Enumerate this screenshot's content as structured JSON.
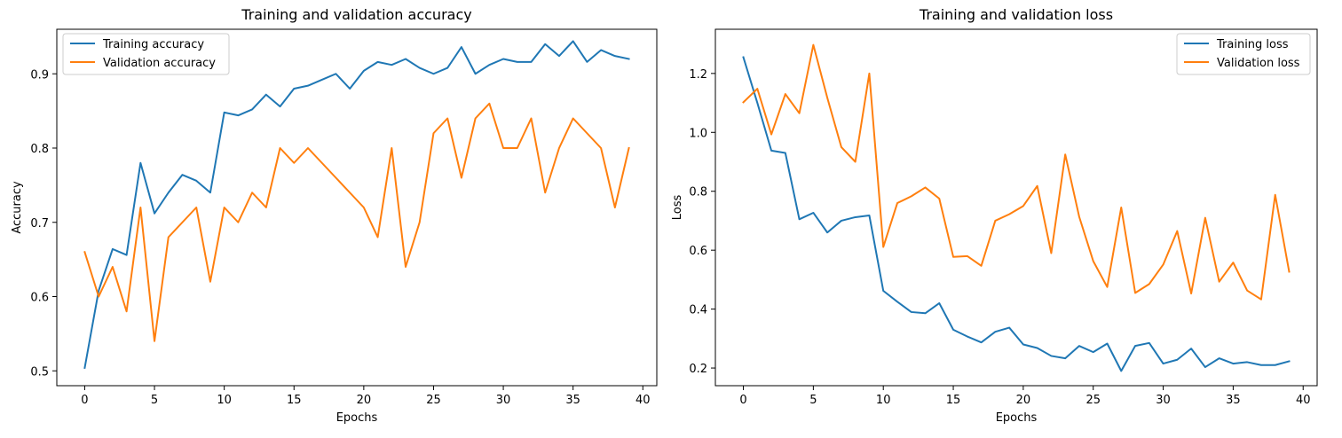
{
  "chart_data": [
    {
      "type": "line",
      "title": "Training and validation accuracy",
      "xlabel": "Epochs",
      "ylabel": "Accuracy",
      "xlim": [
        -2,
        41
      ],
      "ylim": [
        0.48,
        0.96
      ],
      "xticks": [
        0,
        5,
        10,
        15,
        20,
        25,
        30,
        35,
        40
      ],
      "yticks": [
        0.5,
        0.6,
        0.7,
        0.8,
        0.9
      ],
      "ytick_labels": [
        "0.5",
        "0.6",
        "0.7",
        "0.8",
        "0.9"
      ],
      "legend_position": "upper left",
      "grid": false,
      "x": [
        0,
        1,
        2,
        3,
        4,
        5,
        6,
        7,
        8,
        9,
        10,
        11,
        12,
        13,
        14,
        15,
        16,
        17,
        18,
        19,
        20,
        21,
        22,
        23,
        24,
        25,
        26,
        27,
        28,
        29,
        30,
        31,
        32,
        33,
        34,
        35,
        36,
        37,
        38,
        39
      ],
      "series": [
        {
          "name": "Training accuracy",
          "color": "#1f77b4",
          "values": [
            0.504,
            0.608,
            0.664,
            0.656,
            0.78,
            0.712,
            0.74,
            0.764,
            0.756,
            0.74,
            0.848,
            0.844,
            0.852,
            0.872,
            0.856,
            0.88,
            0.884,
            0.892,
            0.9,
            0.88,
            0.904,
            0.916,
            0.912,
            0.92,
            0.908,
            0.9,
            0.908,
            0.936,
            0.9,
            0.912,
            0.92,
            0.916,
            0.916,
            0.94,
            0.924,
            0.944,
            0.916,
            0.932,
            0.924,
            0.92
          ]
        },
        {
          "name": "Validation accuracy",
          "color": "#ff7f0e",
          "values": [
            0.66,
            0.6,
            0.64,
            0.58,
            0.72,
            0.54,
            0.68,
            0.7,
            0.72,
            0.62,
            0.72,
            0.7,
            0.74,
            0.72,
            0.8,
            0.78,
            0.8,
            0.78,
            0.76,
            0.74,
            0.72,
            0.68,
            0.8,
            0.64,
            0.7,
            0.82,
            0.84,
            0.76,
            0.84,
            0.86,
            0.8,
            0.8,
            0.84,
            0.74,
            0.8,
            0.84,
            0.82,
            0.8,
            0.72,
            0.8
          ]
        }
      ]
    },
    {
      "type": "line",
      "title": "Training and validation loss",
      "xlabel": "Epochs",
      "ylabel": "Loss",
      "xlim": [
        -2,
        41
      ],
      "ylim": [
        0.14,
        1.35
      ],
      "xticks": [
        0,
        5,
        10,
        15,
        20,
        25,
        30,
        35,
        40
      ],
      "yticks": [
        0.2,
        0.4,
        0.6,
        0.8,
        1.0,
        1.2
      ],
      "ytick_labels": [
        "0.2",
        "0.4",
        "0.6",
        "0.8",
        "1.0",
        "1.2"
      ],
      "legend_position": "upper right",
      "grid": false,
      "x": [
        0,
        1,
        2,
        3,
        4,
        5,
        6,
        7,
        8,
        9,
        10,
        11,
        12,
        13,
        14,
        15,
        16,
        17,
        18,
        19,
        20,
        21,
        22,
        23,
        24,
        25,
        26,
        27,
        28,
        29,
        30,
        31,
        32,
        33,
        34,
        35,
        36,
        37,
        38,
        39
      ],
      "series": [
        {
          "name": "Training loss",
          "color": "#1f77b4",
          "values": [
            1.255,
            1.1,
            0.938,
            0.93,
            0.705,
            0.727,
            0.66,
            0.7,
            0.712,
            0.718,
            0.462,
            0.425,
            0.39,
            0.386,
            0.42,
            0.33,
            0.307,
            0.287,
            0.323,
            0.337,
            0.28,
            0.268,
            0.241,
            0.233,
            0.275,
            0.254,
            0.283,
            0.19,
            0.275,
            0.285,
            0.215,
            0.228,
            0.266,
            0.203,
            0.233,
            0.215,
            0.22,
            0.21,
            0.21,
            0.223
          ]
        },
        {
          "name": "Validation loss",
          "color": "#ff7f0e",
          "values": [
            1.102,
            1.148,
            0.993,
            1.13,
            1.065,
            1.297,
            1.117,
            0.95,
            0.9,
            1.2,
            0.611,
            0.76,
            0.783,
            0.813,
            0.775,
            0.577,
            0.58,
            0.547,
            0.7,
            0.722,
            0.75,
            0.818,
            0.59,
            0.925,
            0.713,
            0.563,
            0.475,
            0.745,
            0.455,
            0.485,
            0.551,
            0.665,
            0.453,
            0.71,
            0.493,
            0.558,
            0.463,
            0.433,
            0.788,
            0.527
          ]
        }
      ]
    }
  ]
}
